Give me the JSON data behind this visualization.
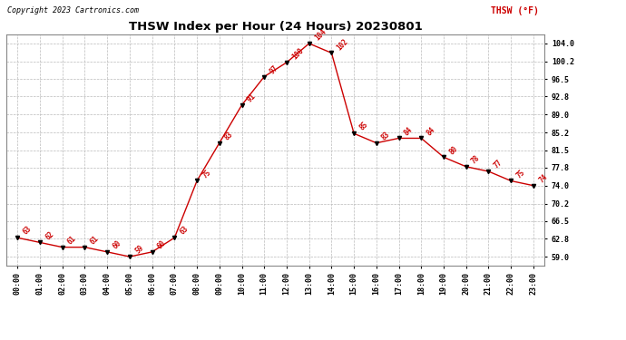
{
  "title": "THSW Index per Hour (24 Hours) 20230801",
  "copyright": "Copyright 2023 Cartronics.com",
  "legend_label": "THSW (°F)",
  "hours": [
    0,
    1,
    2,
    3,
    4,
    5,
    6,
    7,
    8,
    9,
    10,
    11,
    12,
    13,
    14,
    15,
    16,
    17,
    18,
    19,
    20,
    21,
    22,
    23
  ],
  "values": [
    63,
    62,
    61,
    61,
    60,
    59,
    60,
    63,
    75,
    83,
    91,
    97,
    100,
    104,
    102,
    85,
    83,
    84,
    84,
    80,
    78,
    77,
    75,
    74
  ],
  "x_labels": [
    "00:00",
    "01:00",
    "02:00",
    "03:00",
    "04:00",
    "05:00",
    "06:00",
    "07:00",
    "08:00",
    "09:00",
    "10:00",
    "11:00",
    "12:00",
    "13:00",
    "14:00",
    "15:00",
    "16:00",
    "17:00",
    "18:00",
    "19:00",
    "20:00",
    "21:00",
    "22:00",
    "23:00"
  ],
  "yticks": [
    59.0,
    62.8,
    66.5,
    70.2,
    74.0,
    77.8,
    81.5,
    85.2,
    89.0,
    92.8,
    96.5,
    100.2,
    104.0
  ],
  "ylim": [
    57.2,
    106.0
  ],
  "xlim": [
    -0.5,
    23.5
  ],
  "line_color": "#cc0000",
  "marker_color": "#000000",
  "label_color": "#cc0000",
  "title_color": "#000000",
  "background_color": "#ffffff",
  "grid_color": "#bbbbbb",
  "copyright_color": "#000000",
  "legend_color": "#cc0000",
  "title_fontsize": 9.5,
  "copyright_fontsize": 6.0,
  "legend_fontsize": 7.0,
  "tick_fontsize": 6.0,
  "label_fontsize": 5.5
}
